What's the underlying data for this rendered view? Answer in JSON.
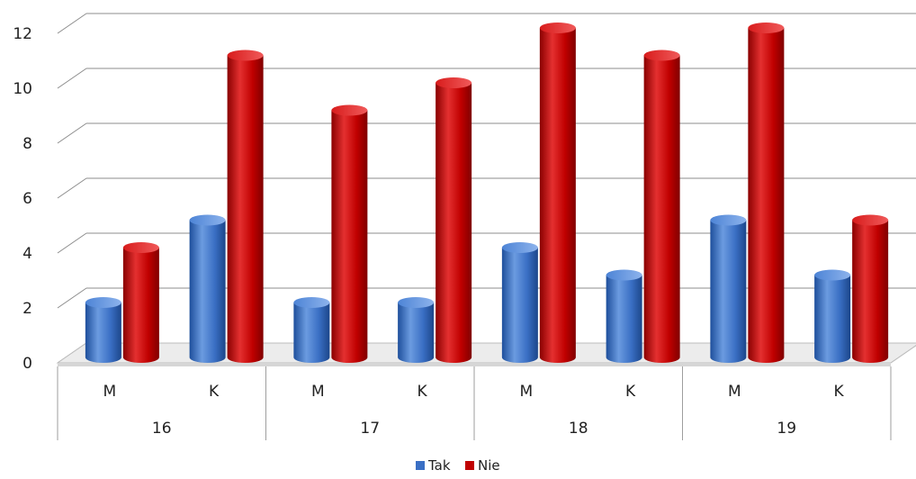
{
  "chart_data": {
    "type": "bar",
    "groups": [
      {
        "label": "16",
        "subcategories": [
          "M",
          "K"
        ]
      },
      {
        "label": "17",
        "subcategories": [
          "M",
          "K"
        ]
      },
      {
        "label": "18",
        "subcategories": [
          "M",
          "K"
        ]
      },
      {
        "label": "19",
        "subcategories": [
          "M",
          "K"
        ]
      }
    ],
    "categories": [
      "M",
      "K",
      "M",
      "K",
      "M",
      "K",
      "M",
      "K"
    ],
    "series": [
      {
        "name": "Tak",
        "color": "#3a6fc4",
        "values": [
          2,
          5,
          2,
          2,
          4,
          3,
          5,
          3
        ]
      },
      {
        "name": "Nie",
        "color": "#c00000",
        "values": [
          4,
          11,
          9,
          10,
          12,
          11,
          12,
          5
        ]
      }
    ],
    "yticks": [
      "0",
      "2",
      "4",
      "6",
      "8",
      "10",
      "12"
    ],
    "ylim": [
      0,
      12
    ],
    "grid": true,
    "legend": "bottom"
  }
}
